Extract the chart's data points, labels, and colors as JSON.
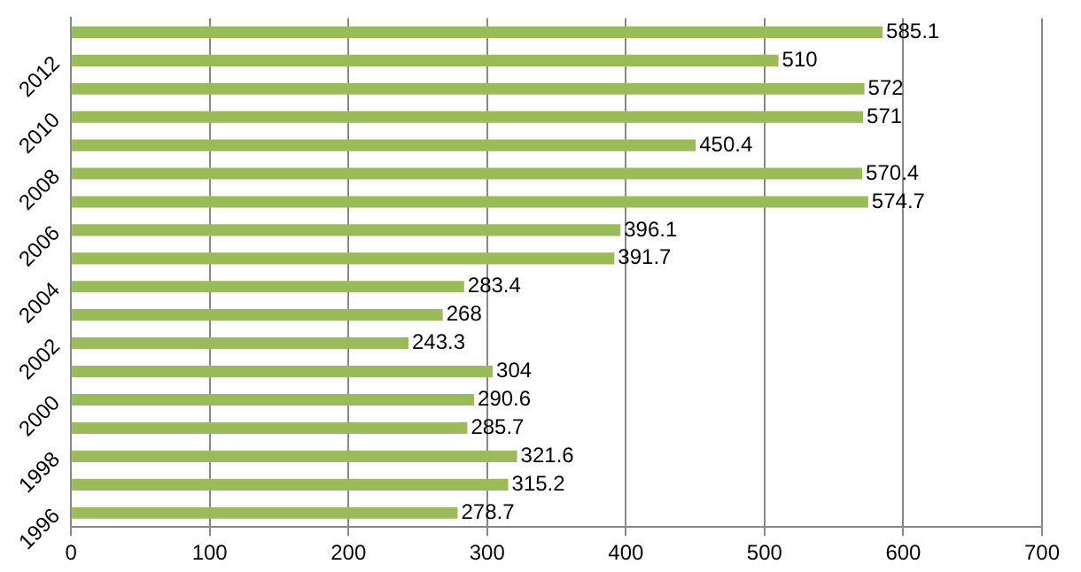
{
  "chart_data": {
    "type": "bar",
    "orientation": "horizontal",
    "categories": [
      null,
      "2012",
      null,
      "2010",
      null,
      "2008",
      null,
      "2006",
      null,
      "2004",
      null,
      "2002",
      null,
      "2000",
      null,
      "1998",
      null,
      "1996"
    ],
    "values": [
      585.1,
      510,
      572,
      571,
      450.4,
      570.4,
      574.7,
      396.1,
      391.7,
      283.4,
      268,
      243.3,
      304,
      290.6,
      285.7,
      321.6,
      315.2,
      278.7
    ],
    "color": "#9bbb59",
    "xlim": [
      0,
      700
    ],
    "xticks": [
      0,
      100,
      200,
      300,
      400,
      500,
      600,
      700
    ],
    "grid": "x",
    "data_labels": true,
    "legend": false
  }
}
